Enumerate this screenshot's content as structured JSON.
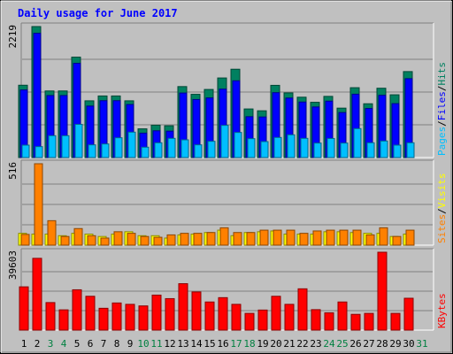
{
  "chart_data": {
    "type": "bar",
    "title": "Daily usage for June 2017",
    "days": [
      "1",
      "2",
      "3",
      "4",
      "5",
      "6",
      "7",
      "8",
      "9",
      "10",
      "11",
      "12",
      "13",
      "14",
      "15",
      "16",
      "17",
      "18",
      "19",
      "20",
      "21",
      "22",
      "23",
      "24",
      "25",
      "26",
      "27",
      "28",
      "29",
      "30",
      "31"
    ],
    "weekend_days": [
      3,
      4,
      10,
      11,
      17,
      18,
      24,
      25,
      31
    ],
    "panels": [
      {
        "id": "hits-files-pages",
        "max_label": "2219",
        "ylim": [
          0,
          2219
        ],
        "legend": [
          "Pages",
          "/",
          "Files",
          "/",
          "Hits"
        ],
        "legend_colors": [
          "#00bfff",
          "#000000",
          "#0000ff",
          "#000000",
          "#008060"
        ],
        "series": [
          {
            "name": "Hits",
            "color": "#008060",
            "values": [
              1225,
              2219,
              1128,
              1128,
              1701,
              961,
              1043,
              1043,
              961,
              486,
              548,
              538,
              1202,
              1071,
              1153,
              1348,
              1496,
              823,
              792,
              1223,
              1095,
              1022,
              936,
              1036,
              837,
              1183,
              911,
              1174,
              1063,
              1456,
              0
            ]
          },
          {
            "name": "Files",
            "color": "#0000ff",
            "values": [
              1145,
              2105,
              1050,
              1050,
              1596,
              872,
              963,
              963,
              898,
              413,
              453,
              447,
              1093,
              983,
              1010,
              1159,
              1300,
              692,
              687,
              1099,
              1008,
              940,
              857,
              955,
              762,
              1073,
              831,
              1054,
              913,
              1336,
              0
            ]
          },
          {
            "name": "Pages",
            "color": "#00bfff",
            "values": [
              210,
              185,
              370,
              370,
              562,
              215,
              230,
              335,
              430,
              175,
              250,
              325,
              300,
              215,
              275,
              545,
              425,
              320,
              270,
              340,
              385,
              325,
              245,
              323,
              245,
              490,
              250,
              280,
              210,
              250,
              0
            ]
          }
        ]
      },
      {
        "id": "sites-visits",
        "max_label": "516",
        "ylim": [
          0,
          516
        ],
        "legend": [
          "Sites",
          "/",
          "Visits"
        ],
        "legend_colors": [
          "#ff8000",
          "#000000",
          "#ffff00"
        ],
        "series": [
          {
            "name": "Visits",
            "color": "#ffff00",
            "values": [
              75,
              70,
              70,
              60,
              75,
              70,
              55,
              70,
              85,
              60,
              60,
              45,
              65,
              70,
              80,
              95,
              60,
              80,
              85,
              90,
              70,
              70,
              70,
              85,
              85,
              80,
              75,
              75,
              55,
              70,
              0
            ]
          },
          {
            "name": "Sites",
            "color": "#ff8000",
            "values": [
              68,
              516,
              155,
              55,
              105,
              60,
              45,
              85,
              75,
              55,
              50,
              65,
              75,
              75,
              80,
              110,
              80,
              80,
              95,
              95,
              95,
              75,
              90,
              95,
              95,
              95,
              65,
              110,
              55,
              95,
              0
            ]
          }
        ]
      },
      {
        "id": "kbytes",
        "max_label": "39603",
        "ylim": [
          0,
          39603
        ],
        "legend": [
          "KBytes"
        ],
        "legend_colors": [
          "#ff0000"
        ],
        "series": [
          {
            "name": "KBytes",
            "color": "#ff0000",
            "values": [
              22000,
              36500,
              14000,
              10300,
              20500,
              17200,
              11100,
              13800,
              13100,
              12300,
              17800,
              16000,
              23600,
              19400,
              14300,
              16500,
              13100,
              8500,
              10200,
              17200,
              13100,
              21000,
              10400,
              8800,
              14300,
              8000,
              8500,
              39603,
              8500,
              16200,
              0
            ]
          }
        ]
      }
    ]
  }
}
